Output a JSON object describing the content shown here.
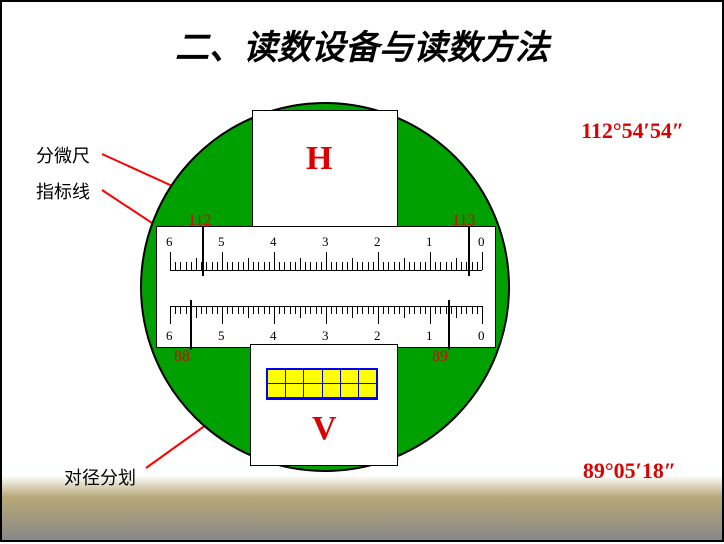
{
  "title": "二、读数设备与读数方法",
  "labels": {
    "fenweichi": "分微尺",
    "zhibiao": "指标线",
    "duijing": "对径分划"
  },
  "letters": {
    "h": "H",
    "v": "V"
  },
  "main_scale": {
    "h_left": "112",
    "h_right": "113",
    "v_left": "88",
    "v_right": "89"
  },
  "readings": {
    "h": "112°54′54″",
    "v": "89°05′18″"
  },
  "micrometer": {
    "labels": [
      "6",
      "5",
      "4",
      "3",
      "2",
      "1",
      "0"
    ],
    "major_count": 7,
    "minor_per_major": 10,
    "colors": {
      "text": "#000000",
      "line": "#000000"
    }
  },
  "style": {
    "circle_color": "#00a000",
    "highlight_color": "#d00000",
    "grid_fill": "#ffff00",
    "grid_border": "#0000ff",
    "arrow_color": "#ff0000",
    "background": "#ffffff"
  },
  "grid": {
    "rows": 2,
    "cols": 6
  }
}
